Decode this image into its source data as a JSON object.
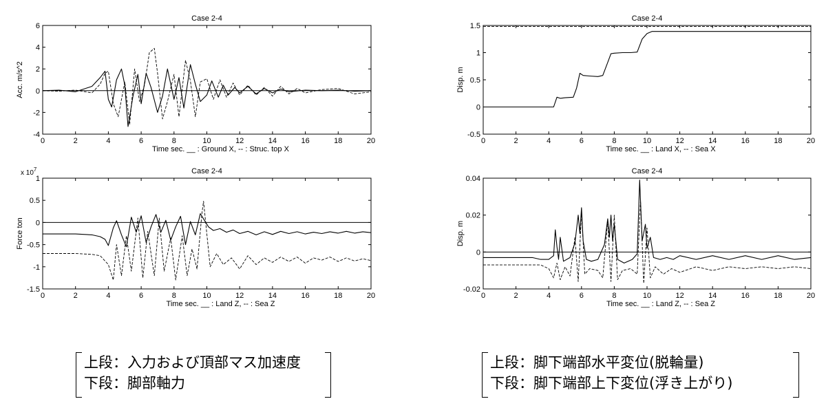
{
  "captions": {
    "left": [
      "上段：入力および頂部マス加速度",
      "下段：脚部軸力"
    ],
    "right": [
      "上段：脚下端部水平変位(脱輪量)",
      "下段：脚下端部上下変位(浮き上がり)"
    ]
  },
  "chart_data": [
    {
      "id": "acc",
      "type": "line",
      "title": "Case 2-4",
      "xlabel": "Time   sec.   __ : Ground  X, -- : Struc. top  X",
      "ylabel": "Acc.  m/s^2",
      "multiplier": "",
      "xlim": [
        0,
        20
      ],
      "ylim": [
        -4,
        6
      ],
      "xticks": [
        0,
        2,
        4,
        6,
        8,
        10,
        12,
        14,
        16,
        18,
        20
      ],
      "yticks": [
        -4,
        -2,
        0,
        2,
        4,
        6
      ],
      "ytick_labels": [
        "-4",
        "-2",
        "0",
        "2",
        "4",
        "6"
      ],
      "reference_line": 0,
      "series": [
        {
          "style": "solid",
          "x": [
            0,
            1,
            2,
            3,
            3.5,
            3.8,
            4.0,
            4.2,
            4.5,
            4.8,
            5.0,
            5.2,
            5.5,
            5.8,
            6.0,
            6.3,
            6.6,
            7.0,
            7.3,
            7.6,
            8.0,
            8.3,
            8.6,
            9.0,
            9.3,
            9.6,
            10.0,
            10.3,
            10.7,
            11.0,
            11.3,
            11.7,
            12.0,
            12.5,
            13.0,
            13.5,
            14.0,
            14.5,
            15.0,
            16,
            17,
            18,
            19,
            20
          ],
          "y": [
            0,
            0.05,
            -0.1,
            0.4,
            1.2,
            1.8,
            -0.8,
            -1.5,
            1.0,
            2.0,
            0.5,
            -3.3,
            -0.5,
            1.5,
            -1.2,
            1.6,
            0.3,
            -2.0,
            -0.5,
            2.0,
            -0.8,
            1.2,
            -1.6,
            2.4,
            0.6,
            -1.0,
            -0.4,
            0.9,
            -0.6,
            0.5,
            -0.4,
            0.3,
            -0.2,
            0.4,
            -0.3,
            0.2,
            -0.2,
            0.15,
            -0.1,
            0.05,
            0,
            0.05,
            -0.05,
            0
          ]
        },
        {
          "style": "dashed",
          "x": [
            0,
            1,
            2,
            3,
            3.5,
            3.8,
            4.0,
            4.3,
            4.6,
            5.0,
            5.3,
            5.6,
            5.9,
            6.2,
            6.5,
            6.8,
            7.0,
            7.3,
            7.6,
            8.0,
            8.3,
            8.7,
            9.0,
            9.3,
            9.6,
            10.0,
            10.4,
            10.8,
            11.2,
            11.6,
            12.0,
            12.5,
            13.0,
            13.5,
            14.0,
            14.5,
            15.0,
            15.5,
            16,
            17,
            18,
            19,
            20
          ],
          "y": [
            0,
            -0.05,
            0.05,
            -0.2,
            0.6,
            1.6,
            1.8,
            -1.2,
            -2.4,
            0.8,
            -3.1,
            2.0,
            -1.0,
            0.5,
            3.5,
            3.9,
            1.6,
            -2.6,
            -1.0,
            1.5,
            -2.4,
            2.8,
            0.9,
            -2.4,
            0.8,
            1.1,
            -0.8,
            1.0,
            -0.6,
            0.7,
            -0.4,
            0.5,
            -0.4,
            0.3,
            -0.5,
            0.4,
            -0.3,
            0.2,
            -0.2,
            0.1,
            0.2,
            -0.3,
            -0.1
          ]
        }
      ]
    },
    {
      "id": "disp-x",
      "type": "line",
      "title": "Case 2-4",
      "xlabel": "Time   sec.   __ : Land  X, -- : Sea  X",
      "ylabel": "Disp.  m",
      "multiplier": "",
      "xlim": [
        0,
        20
      ],
      "ylim": [
        -0.5,
        1.5
      ],
      "xticks": [
        0,
        2,
        4,
        6,
        8,
        10,
        12,
        14,
        16,
        18,
        20
      ],
      "yticks": [
        -0.5,
        0,
        0.5,
        1,
        1.5
      ],
      "ytick_labels": [
        "-0.5",
        "0",
        "0.5",
        "1",
        "1.5"
      ],
      "reference_line": null,
      "series": [
        {
          "style": "solid",
          "x": [
            0,
            4.3,
            4.5,
            4.7,
            5.0,
            5.5,
            5.7,
            5.9,
            6.1,
            6.5,
            7.0,
            7.3,
            7.6,
            7.8,
            8.0,
            8.5,
            9.0,
            9.4,
            9.7,
            10.0,
            10.3,
            10.5,
            11,
            12,
            14,
            16,
            18,
            20
          ],
          "y": [
            0,
            0,
            0.18,
            0.16,
            0.17,
            0.18,
            0.35,
            0.62,
            0.58,
            0.57,
            0.56,
            0.58,
            0.82,
            0.98,
            0.99,
            1.0,
            1.0,
            1.01,
            1.25,
            1.35,
            1.39,
            1.39,
            1.39,
            1.39,
            1.39,
            1.39,
            1.39,
            1.39
          ]
        },
        {
          "style": "dashed",
          "x": [
            0,
            20
          ],
          "y": [
            1.48,
            1.48
          ]
        }
      ]
    },
    {
      "id": "force",
      "type": "line",
      "title": "Case 2-4",
      "xlabel": "Time   sec.   __ : Land  Z, -- : Sea  Z",
      "ylabel": "Force  ton",
      "multiplier": "x 10^7",
      "xlim": [
        0,
        20
      ],
      "ylim": [
        -1.5,
        1
      ],
      "xticks": [
        0,
        2,
        4,
        6,
        8,
        10,
        12,
        14,
        16,
        18,
        20
      ],
      "yticks": [
        -1.5,
        -1,
        -0.5,
        0,
        0.5,
        1
      ],
      "ytick_labels": [
        "-1.5",
        "-1",
        "-0.5",
        "0",
        "0.5",
        "1"
      ],
      "reference_line": 0,
      "series": [
        {
          "style": "solid",
          "x": [
            0,
            2,
            3,
            3.5,
            3.8,
            4.0,
            4.3,
            4.5,
            4.8,
            5.1,
            5.4,
            5.7,
            6.0,
            6.3,
            6.6,
            6.9,
            7.2,
            7.5,
            7.8,
            8.1,
            8.4,
            8.7,
            9.0,
            9.3,
            9.6,
            9.8,
            10.1,
            10.4,
            10.8,
            11.2,
            11.6,
            12.0,
            12.5,
            13.0,
            13.5,
            14.0,
            14.5,
            15,
            15.5,
            16,
            16.5,
            17,
            17.5,
            18,
            18.5,
            19,
            19.5,
            20
          ],
          "y": [
            -0.26,
            -0.26,
            -0.28,
            -0.32,
            -0.38,
            -0.52,
            -0.12,
            0.04,
            -0.28,
            -0.55,
            0.12,
            -0.22,
            0.15,
            -0.45,
            -0.1,
            0.18,
            -0.22,
            0.05,
            -0.4,
            -0.1,
            0.14,
            -0.5,
            0.02,
            -0.28,
            0.2,
            0.08,
            -0.1,
            -0.18,
            -0.14,
            -0.22,
            -0.17,
            -0.25,
            -0.2,
            -0.28,
            -0.21,
            -0.27,
            -0.2,
            -0.25,
            -0.21,
            -0.26,
            -0.22,
            -0.25,
            -0.21,
            -0.24,
            -0.2,
            -0.24,
            -0.21,
            -0.23
          ]
        },
        {
          "style": "dashed",
          "x": [
            0,
            2,
            3,
            3.5,
            4.0,
            4.3,
            4.5,
            4.8,
            5.1,
            5.4,
            5.8,
            6.1,
            6.4,
            6.8,
            7.1,
            7.4,
            7.8,
            8.1,
            8.5,
            8.8,
            9.1,
            9.4,
            9.7,
            9.8,
            10.2,
            10.6,
            11,
            11.5,
            12,
            12.5,
            13,
            13.5,
            14,
            14.5,
            15,
            15.5,
            16,
            16.5,
            17,
            17.5,
            18,
            18.5,
            19,
            19.5,
            20
          ],
          "y": [
            -0.7,
            -0.7,
            -0.72,
            -0.75,
            -0.95,
            -1.3,
            -0.5,
            -1.2,
            -0.3,
            -1.1,
            0.1,
            -1.25,
            -0.2,
            -1.2,
            0.1,
            -1.1,
            -0.35,
            -1.3,
            -0.3,
            -1.2,
            -0.6,
            -1.05,
            0.2,
            0.48,
            -1.0,
            -0.7,
            -0.95,
            -0.8,
            -1.05,
            -0.75,
            -0.95,
            -0.8,
            -0.9,
            -0.78,
            -0.88,
            -0.78,
            -0.92,
            -0.8,
            -0.85,
            -0.78,
            -0.88,
            -0.8,
            -0.87,
            -0.82,
            -0.86
          ]
        }
      ]
    },
    {
      "id": "disp-z",
      "type": "line",
      "title": "Case 2-4",
      "xlabel": "Time   sec.   __ : Land  Z, -- : Sea  Z",
      "ylabel": "Disp.  m",
      "multiplier": "",
      "xlim": [
        0,
        20
      ],
      "ylim": [
        -0.02,
        0.04
      ],
      "xticks": [
        0,
        2,
        4,
        6,
        8,
        10,
        12,
        14,
        16,
        18,
        20
      ],
      "yticks": [
        -0.02,
        0,
        0.02,
        0.04
      ],
      "ytick_labels": [
        "-0.02",
        "0",
        "0.02",
        "0.04"
      ],
      "reference_line": 0,
      "series": [
        {
          "style": "solid",
          "x": [
            0,
            2,
            3,
            3.5,
            4.0,
            4.3,
            4.4,
            4.5,
            4.6,
            4.7,
            4.9,
            5.3,
            5.6,
            5.8,
            5.9,
            6.0,
            6.1,
            6.3,
            6.6,
            7.0,
            7.4,
            7.6,
            7.7,
            7.8,
            7.9,
            8.0,
            8.2,
            8.6,
            9.1,
            9.4,
            9.55,
            9.6,
            9.7,
            9.9,
            10.0,
            10.2,
            10.4,
            10.8,
            11.2,
            11.6,
            12,
            13,
            14,
            15,
            16,
            17,
            18,
            19,
            20
          ],
          "y": [
            -0.003,
            -0.003,
            -0.003,
            -0.004,
            -0.004,
            -0.002,
            0.012,
            0.003,
            -0.004,
            0.008,
            -0.005,
            -0.003,
            0.005,
            0.02,
            0.01,
            0.024,
            0.006,
            -0.004,
            -0.005,
            -0.004,
            0.004,
            0.018,
            0.008,
            0.02,
            0.006,
            0.015,
            -0.004,
            -0.006,
            -0.004,
            -0.001,
            0.039,
            0.028,
            0.006,
            0.015,
            0.002,
            0.008,
            -0.003,
            -0.004,
            -0.003,
            -0.004,
            -0.002,
            -0.004,
            -0.002,
            -0.004,
            -0.002,
            -0.004,
            -0.002,
            -0.004,
            -0.003
          ]
        },
        {
          "style": "dashed",
          "x": [
            0,
            2,
            3,
            3.5,
            4.0,
            4.3,
            4.5,
            4.7,
            5.0,
            5.3,
            5.6,
            5.8,
            6.0,
            6.2,
            6.5,
            7.0,
            7.3,
            7.6,
            7.8,
            8.0,
            8.2,
            8.5,
            9.0,
            9.4,
            9.6,
            9.8,
            10.0,
            10.2,
            10.5,
            11,
            11.5,
            12,
            13,
            14,
            15,
            16,
            17,
            18,
            19,
            20
          ],
          "y": [
            -0.007,
            -0.007,
            -0.007,
            -0.007,
            -0.009,
            -0.014,
            -0.006,
            -0.015,
            -0.008,
            -0.013,
            0.008,
            -0.016,
            0.022,
            -0.012,
            -0.009,
            -0.01,
            -0.014,
            0.017,
            -0.016,
            0.02,
            -0.015,
            -0.01,
            -0.009,
            -0.012,
            0.028,
            -0.017,
            0.013,
            -0.014,
            -0.008,
            -0.012,
            -0.009,
            -0.011,
            -0.008,
            -0.01,
            -0.008,
            -0.009,
            -0.008,
            -0.009,
            -0.008,
            -0.009
          ]
        }
      ]
    }
  ]
}
